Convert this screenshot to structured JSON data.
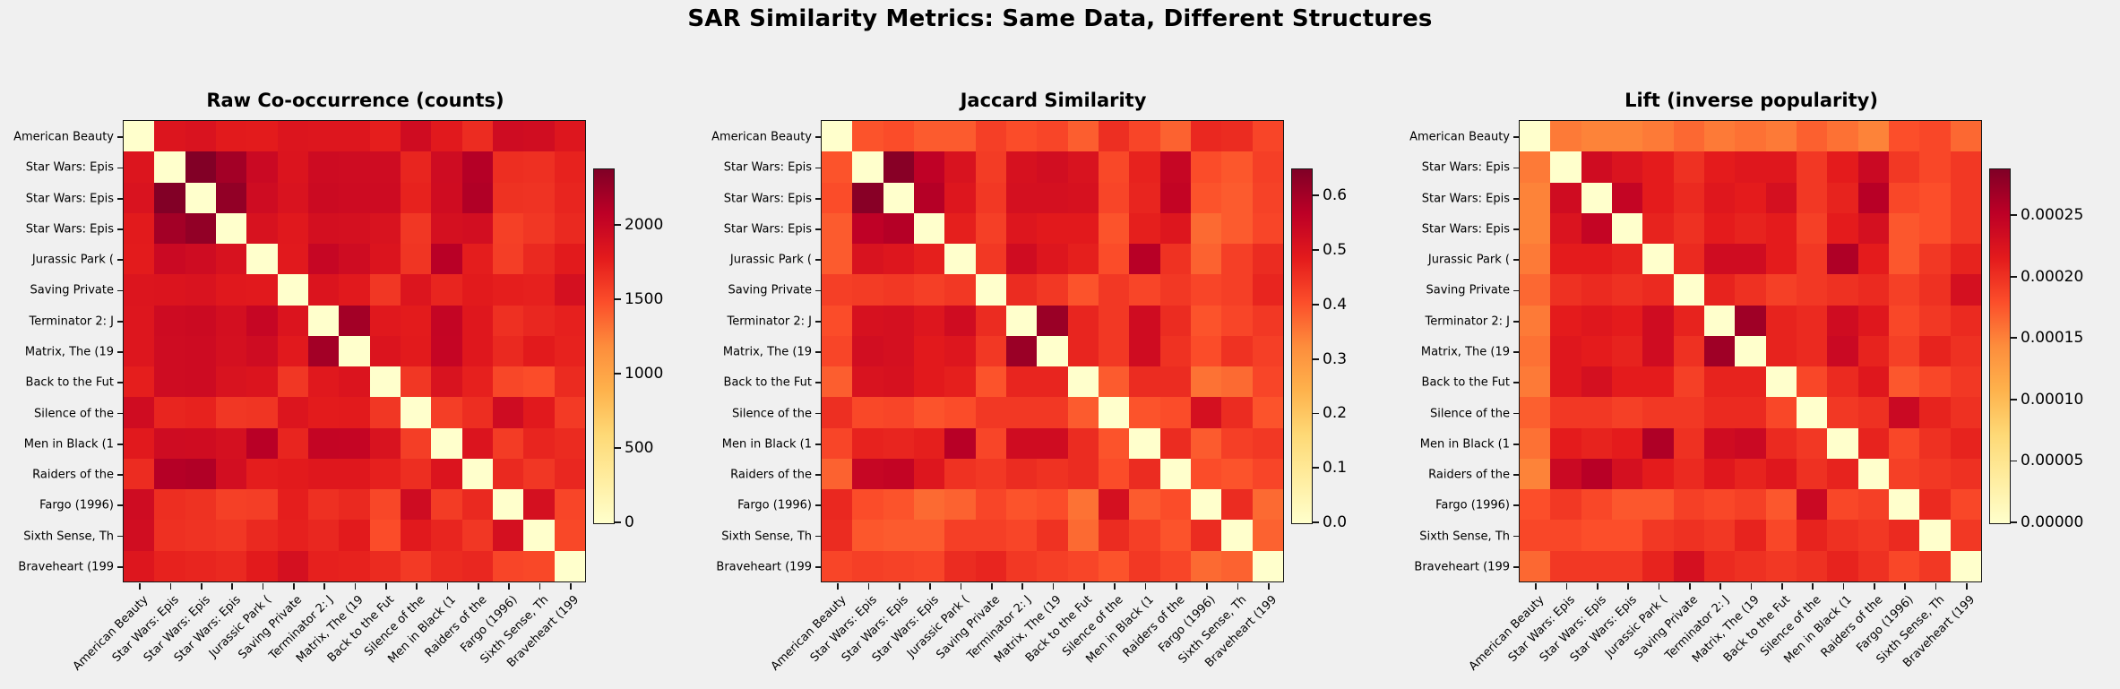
{
  "figure": {
    "suptitle": "SAR Similarity Metrics: Same Data, Different Structures",
    "background_color": "#f0f0f0",
    "text_color": "#000000"
  },
  "colormap": {
    "name": "YlOrRd",
    "stops": [
      "#ffffcc",
      "#ffeda0",
      "#fed976",
      "#feb24c",
      "#fd8d3c",
      "#fc4e2a",
      "#e31a1c",
      "#bd0026",
      "#800026"
    ],
    "diagonal_color": "#ffffcc"
  },
  "labels": [
    "American Beauty",
    "Star Wars: Epis",
    "Star Wars: Epis",
    "Star Wars: Epis",
    "Jurassic Park (",
    "Saving Private",
    "Terminator 2: J",
    "Matrix, The (19",
    "Back to the Fut",
    "Silence of the",
    "Men in Black (1",
    "Raiders of the",
    "Fargo (1996)",
    "Sixth Sense, Th",
    "Braveheart (199"
  ],
  "chart_data": [
    {
      "type": "heatmap",
      "title": "Raw Co-occurrence (counts)",
      "labels": [
        "American Beauty",
        "Star Wars: Epis",
        "Star Wars: Epis",
        "Star Wars: Epis",
        "Jurassic Park (",
        "Saving Private",
        "Terminator 2: J",
        "Matrix, The (19",
        "Back to the Fut",
        "Silence of the",
        "Men in Black (1",
        "Raiders of the",
        "Fargo (1996)",
        "Sixth Sense, Th",
        "Braveheart (199"
      ],
      "vmin": 0,
      "vmax": 2380,
      "colorbar_ticks": [
        {
          "value": 0,
          "label": "0"
        },
        {
          "value": 500,
          "label": "500"
        },
        {
          "value": 1000,
          "label": "1000"
        },
        {
          "value": 1500,
          "label": "1500"
        },
        {
          "value": 2000,
          "label": "2000"
        }
      ],
      "matrix": [
        [
          0,
          1840,
          1860,
          1790,
          1780,
          1840,
          1830,
          1830,
          1760,
          1940,
          1800,
          1680,
          1950,
          1930,
          1830
        ],
        [
          1840,
          0,
          2370,
          2210,
          1980,
          1850,
          1960,
          1950,
          1950,
          1720,
          1950,
          2120,
          1670,
          1660,
          1740
        ],
        [
          1860,
          2370,
          0,
          2290,
          1950,
          1860,
          1970,
          1960,
          1960,
          1740,
          1940,
          2140,
          1650,
          1640,
          1720
        ],
        [
          1790,
          2210,
          2290,
          0,
          1880,
          1810,
          1910,
          1900,
          1870,
          1620,
          1900,
          1920,
          1570,
          1620,
          1700
        ],
        [
          1780,
          1980,
          1950,
          1880,
          0,
          1800,
          2010,
          1950,
          1850,
          1630,
          2100,
          1770,
          1580,
          1700,
          1790
        ],
        [
          1840,
          1850,
          1860,
          1810,
          1800,
          0,
          1850,
          1800,
          1620,
          1840,
          1720,
          1790,
          1760,
          1750,
          1900
        ],
        [
          1830,
          1960,
          1970,
          1910,
          2010,
          1850,
          0,
          2210,
          1810,
          1780,
          2030,
          1820,
          1660,
          1710,
          1750
        ],
        [
          1830,
          1950,
          1960,
          1900,
          1950,
          1800,
          2210,
          0,
          1850,
          1790,
          2020,
          1820,
          1700,
          1790,
          1740
        ],
        [
          1760,
          1950,
          1960,
          1870,
          1850,
          1620,
          1810,
          1850,
          0,
          1620,
          1870,
          1750,
          1530,
          1500,
          1690
        ],
        [
          1940,
          1720,
          1740,
          1620,
          1630,
          1840,
          1780,
          1790,
          1620,
          0,
          1580,
          1670,
          1950,
          1800,
          1600
        ],
        [
          1800,
          1950,
          1940,
          1900,
          2100,
          1720,
          2030,
          2020,
          1870,
          1580,
          0,
          1850,
          1590,
          1720,
          1690
        ],
        [
          1680,
          2120,
          2140,
          1920,
          1770,
          1790,
          1820,
          1820,
          1750,
          1670,
          1850,
          0,
          1700,
          1620,
          1710
        ],
        [
          1950,
          1670,
          1650,
          1570,
          1580,
          1760,
          1660,
          1700,
          1530,
          1950,
          1590,
          1700,
          0,
          1900,
          1540
        ],
        [
          1930,
          1660,
          1640,
          1620,
          1700,
          1750,
          1710,
          1790,
          1500,
          1800,
          1720,
          1620,
          1900,
          0,
          1520
        ],
        [
          1830,
          1740,
          1720,
          1700,
          1790,
          1900,
          1750,
          1740,
          1690,
          1600,
          1690,
          1710,
          1540,
          1520,
          0
        ]
      ]
    },
    {
      "type": "heatmap",
      "title": "Jaccard Similarity",
      "labels": [
        "American Beauty",
        "Star Wars: Epis",
        "Star Wars: Epis",
        "Star Wars: Epis",
        "Jurassic Park (",
        "Saving Private",
        "Terminator 2: J",
        "Matrix, The (19",
        "Back to the Fut",
        "Silence of the",
        "Men in Black (1",
        "Raiders of the",
        "Fargo (1996)",
        "Sixth Sense, Th",
        "Braveheart (199"
      ],
      "vmin": 0,
      "vmax": 0.65,
      "colorbar_ticks": [
        {
          "value": 0.0,
          "label": "0.0"
        },
        {
          "value": 0.1,
          "label": "0.1"
        },
        {
          "value": 0.2,
          "label": "0.2"
        },
        {
          "value": 0.3,
          "label": "0.3"
        },
        {
          "value": 0.4,
          "label": "0.4"
        },
        {
          "value": 0.5,
          "label": "0.5"
        },
        {
          "value": 0.6,
          "label": "0.6"
        }
      ],
      "matrix": [
        [
          0,
          0.4,
          0.41,
          0.39,
          0.39,
          0.43,
          0.41,
          0.42,
          0.385,
          0.455,
          0.42,
          0.38,
          0.465,
          0.46,
          0.42
        ],
        [
          0.4,
          0,
          0.64,
          0.565,
          0.51,
          0.435,
          0.515,
          0.525,
          0.51,
          0.415,
          0.475,
          0.55,
          0.41,
          0.395,
          0.43
        ],
        [
          0.41,
          0.64,
          0,
          0.58,
          0.5,
          0.44,
          0.52,
          0.52,
          0.515,
          0.42,
          0.47,
          0.555,
          0.4,
          0.39,
          0.425
        ],
        [
          0.39,
          0.565,
          0.58,
          0,
          0.48,
          0.43,
          0.5,
          0.49,
          0.49,
          0.4,
          0.48,
          0.5,
          0.37,
          0.39,
          0.42
        ],
        [
          0.39,
          0.51,
          0.5,
          0.48,
          0,
          0.44,
          0.53,
          0.5,
          0.48,
          0.41,
          0.575,
          0.45,
          0.38,
          0.43,
          0.46
        ],
        [
          0.43,
          0.435,
          0.44,
          0.43,
          0.44,
          0,
          0.46,
          0.44,
          0.4,
          0.44,
          0.42,
          0.44,
          0.42,
          0.43,
          0.47
        ],
        [
          0.41,
          0.515,
          0.52,
          0.5,
          0.53,
          0.46,
          0,
          0.615,
          0.47,
          0.44,
          0.53,
          0.46,
          0.4,
          0.42,
          0.44
        ],
        [
          0.42,
          0.525,
          0.52,
          0.49,
          0.5,
          0.44,
          0.615,
          0,
          0.47,
          0.44,
          0.53,
          0.45,
          0.41,
          0.45,
          0.43
        ],
        [
          0.385,
          0.51,
          0.515,
          0.49,
          0.48,
          0.4,
          0.47,
          0.47,
          0,
          0.39,
          0.46,
          0.46,
          0.36,
          0.37,
          0.42
        ],
        [
          0.455,
          0.415,
          0.42,
          0.4,
          0.41,
          0.44,
          0.44,
          0.44,
          0.39,
          0,
          0.4,
          0.41,
          0.52,
          0.46,
          0.4
        ],
        [
          0.42,
          0.475,
          0.47,
          0.48,
          0.575,
          0.42,
          0.53,
          0.53,
          0.46,
          0.4,
          0,
          0.46,
          0.39,
          0.43,
          0.44
        ],
        [
          0.38,
          0.55,
          0.555,
          0.5,
          0.45,
          0.44,
          0.46,
          0.45,
          0.46,
          0.41,
          0.46,
          0,
          0.41,
          0.4,
          0.42
        ],
        [
          0.465,
          0.41,
          0.4,
          0.37,
          0.38,
          0.42,
          0.4,
          0.41,
          0.36,
          0.52,
          0.39,
          0.41,
          0,
          0.46,
          0.37
        ],
        [
          0.46,
          0.395,
          0.39,
          0.39,
          0.43,
          0.43,
          0.42,
          0.45,
          0.37,
          0.46,
          0.43,
          0.4,
          0.46,
          0,
          0.38
        ],
        [
          0.42,
          0.43,
          0.425,
          0.42,
          0.46,
          0.47,
          0.44,
          0.43,
          0.42,
          0.4,
          0.44,
          0.42,
          0.37,
          0.38,
          0
        ]
      ]
    },
    {
      "type": "heatmap",
      "title": "Lift (inverse popularity)",
      "labels": [
        "American Beauty",
        "Star Wars: Epis",
        "Star Wars: Epis",
        "Star Wars: Epis",
        "Jurassic Park (",
        "Saving Private",
        "Terminator 2: J",
        "Matrix, The (19",
        "Back to the Fut",
        "Silence of the",
        "Men in Black (1",
        "Raiders of the",
        "Fargo (1996)",
        "Sixth Sense, Th",
        "Braveheart (199"
      ],
      "vmin": 0,
      "vmax": 0.000288,
      "colorbar_ticks": [
        {
          "value": 0.0,
          "label": "0.00000"
        },
        {
          "value": 5e-05,
          "label": "0.00005"
        },
        {
          "value": 0.0001,
          "label": "0.00010"
        },
        {
          "value": 0.00015,
          "label": "0.00015"
        },
        {
          "value": 0.0002,
          "label": "0.00020"
        },
        {
          "value": 0.00025,
          "label": "0.00025"
        }
      ],
      "matrix": [
        [
          0,
          0.000155,
          0.00015,
          0.00015,
          0.000155,
          0.000165,
          0.000155,
          0.00016,
          0.000155,
          0.00017,
          0.00016,
          0.00015,
          0.00018,
          0.000185,
          0.000165
        ],
        [
          0.000155,
          0,
          0.000235,
          0.000225,
          0.000215,
          0.0002,
          0.000215,
          0.00022,
          0.00022,
          0.000195,
          0.000215,
          0.00024,
          0.000195,
          0.000185,
          0.000195
        ],
        [
          0.00015,
          0.000235,
          0,
          0.000245,
          0.000215,
          0.000205,
          0.00022,
          0.000215,
          0.00023,
          0.000195,
          0.00021,
          0.000255,
          0.000185,
          0.00018,
          0.000195
        ],
        [
          0.00015,
          0.000225,
          0.000245,
          0,
          0.00021,
          0.0002,
          0.000215,
          0.00021,
          0.000215,
          0.00019,
          0.000215,
          0.00023,
          0.000175,
          0.00018,
          0.000195
        ],
        [
          0.000155,
          0.000215,
          0.000215,
          0.00021,
          0,
          0.000205,
          0.000235,
          0.000235,
          0.000215,
          0.000195,
          0.00026,
          0.000215,
          0.000175,
          0.000195,
          0.00021
        ],
        [
          0.000165,
          0.0002,
          0.000205,
          0.0002,
          0.000205,
          0,
          0.00021,
          0.0002,
          0.00019,
          0.000195,
          0.0002,
          0.000205,
          0.00019,
          0.0002,
          0.00023
        ],
        [
          0.000155,
          0.000215,
          0.00022,
          0.000215,
          0.000235,
          0.00021,
          0,
          0.00027,
          0.00021,
          0.000205,
          0.000235,
          0.00022,
          0.000185,
          0.000195,
          0.000205
        ],
        [
          0.00016,
          0.00022,
          0.000215,
          0.00021,
          0.000235,
          0.0002,
          0.00027,
          0,
          0.00021,
          0.000205,
          0.00024,
          0.00021,
          0.00019,
          0.00021,
          0.0002
        ],
        [
          0.000155,
          0.00022,
          0.00023,
          0.000215,
          0.000215,
          0.00019,
          0.00021,
          0.00021,
          0,
          0.000185,
          0.000205,
          0.00022,
          0.000175,
          0.000185,
          0.000195
        ],
        [
          0.00017,
          0.000195,
          0.000195,
          0.00019,
          0.000195,
          0.000195,
          0.000205,
          0.000205,
          0.000185,
          0,
          0.000195,
          0.0002,
          0.00024,
          0.00021,
          0.0002
        ],
        [
          0.00016,
          0.000215,
          0.00021,
          0.000215,
          0.00026,
          0.0002,
          0.000235,
          0.00024,
          0.000205,
          0.000195,
          0,
          0.00021,
          0.000185,
          0.0002,
          0.00021
        ],
        [
          0.00015,
          0.00024,
          0.000255,
          0.00023,
          0.000215,
          0.000205,
          0.00022,
          0.00021,
          0.00022,
          0.0002,
          0.00021,
          0,
          0.00019,
          0.000195,
          0.0002
        ],
        [
          0.00018,
          0.000195,
          0.000185,
          0.000175,
          0.000175,
          0.00019,
          0.000185,
          0.00019,
          0.000175,
          0.00024,
          0.000185,
          0.00019,
          0,
          0.000205,
          0.000185
        ],
        [
          0.000185,
          0.000185,
          0.00018,
          0.00018,
          0.000195,
          0.0002,
          0.000195,
          0.00021,
          0.000185,
          0.00021,
          0.0002,
          0.000195,
          0.000205,
          0,
          0.000195
        ],
        [
          0.000165,
          0.000195,
          0.000195,
          0.000195,
          0.00021,
          0.00023,
          0.000205,
          0.0002,
          0.000195,
          0.0002,
          0.00021,
          0.0002,
          0.000185,
          0.000195,
          0
        ]
      ]
    }
  ]
}
